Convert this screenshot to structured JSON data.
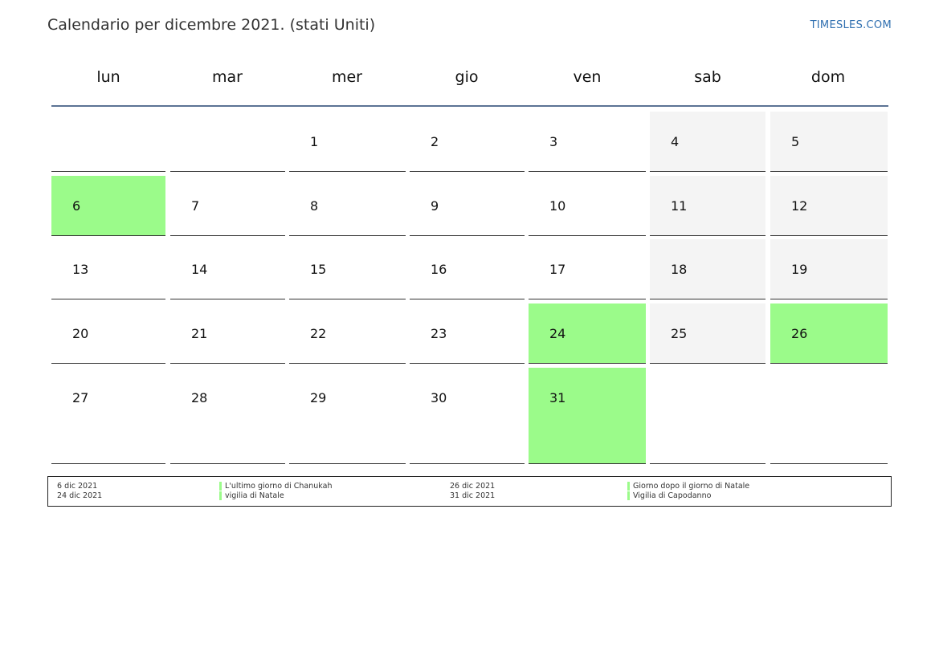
{
  "header": {
    "title": "Calendario per dicembre 2021. (stati Uniti)",
    "brand": "TIMESLES.COM"
  },
  "weekdays": [
    "lun",
    "mar",
    "mer",
    "gio",
    "ven",
    "sab",
    "dom"
  ],
  "weeks": [
    [
      "",
      "",
      "1",
      "2",
      "3",
      "4",
      "5"
    ],
    [
      "6",
      "7",
      "8",
      "9",
      "10",
      "11",
      "12"
    ],
    [
      "13",
      "14",
      "15",
      "16",
      "17",
      "18",
      "19"
    ],
    [
      "20",
      "21",
      "22",
      "23",
      "24",
      "25",
      "26"
    ],
    [
      "27",
      "28",
      "29",
      "30",
      "31",
      "",
      ""
    ]
  ],
  "holiday_days": [
    "6",
    "24",
    "26",
    "31"
  ],
  "colors": {
    "holiday": "#9bfb8a",
    "weekend": "#f4f4f4",
    "header_rule": "#5b7394",
    "brand": "#2f6fb0"
  },
  "legend": [
    {
      "date": "6 dic 2021",
      "name": "L'ultimo giorno di Chanukah"
    },
    {
      "date": "24 dic 2021",
      "name": "vigilia di Natale"
    },
    {
      "date": "26 dic 2021",
      "name": "Giorno dopo il giorno di Natale"
    },
    {
      "date": "31 dic 2021",
      "name": "Vigilia di Capodanno"
    }
  ]
}
